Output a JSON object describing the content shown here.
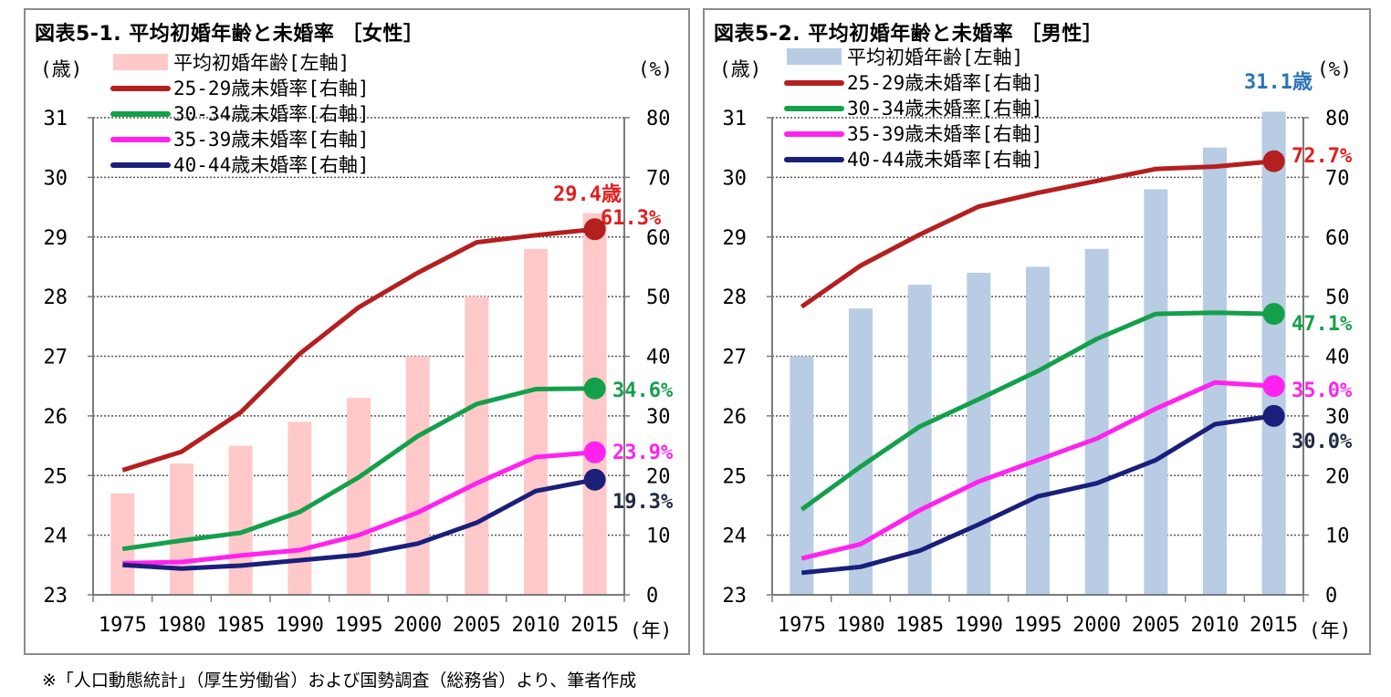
{
  "chart_data": [
    {
      "type": "bar+line",
      "title": "図表5-1. 平均初婚年齢と未婚率 ［女性］",
      "left_axis_unit": "(歳)",
      "right_axis_unit": "(%)",
      "x_unit": "(年)",
      "categories": [
        "1975",
        "1980",
        "1985",
        "1990",
        "1995",
        "2000",
        "2005",
        "2010",
        "2015"
      ],
      "left_ylim": [
        23,
        31
      ],
      "left_ticks": [
        "23",
        "24",
        "25",
        "26",
        "27",
        "28",
        "29",
        "30",
        "31"
      ],
      "right_ylim": [
        0,
        80
      ],
      "right_ticks": [
        "0",
        "10",
        "20",
        "30",
        "40",
        "50",
        "60",
        "70",
        "80"
      ],
      "bar_series": {
        "name": "平均初婚年齢[左軸]",
        "color": "#ffc9c9",
        "values": [
          24.7,
          25.2,
          25.5,
          25.9,
          26.3,
          27.0,
          28.0,
          28.8,
          29.4
        ]
      },
      "line_series": [
        {
          "name": "25-29歳未婚率[右軸]",
          "color": "#b41f1f",
          "values": [
            20.9,
            24.0,
            30.6,
            40.4,
            48.2,
            54.0,
            59.1,
            60.3,
            61.3
          ]
        },
        {
          "name": "30-34歳未婚率[右軸]",
          "color": "#14a04a",
          "values": [
            7.7,
            9.1,
            10.4,
            13.9,
            19.7,
            26.6,
            32.0,
            34.5,
            34.6
          ]
        },
        {
          "name": "35-39歳未婚率[右軸]",
          "color": "#ff22ee",
          "values": [
            5.3,
            5.5,
            6.6,
            7.5,
            10.0,
            13.8,
            18.7,
            23.1,
            23.9
          ]
        },
        {
          "name": "40-44歳未婚率[右軸]",
          "color": "#1a1f7a",
          "values": [
            5.0,
            4.4,
            4.9,
            5.8,
            6.7,
            8.6,
            12.1,
            17.4,
            19.3
          ]
        }
      ],
      "annotations": [
        {
          "text": "29.4歳",
          "color": "#e0201e"
        },
        {
          "text": "61.3%",
          "color": "#e0201e"
        },
        {
          "text": "34.6%",
          "color": "#14a04a"
        },
        {
          "text": "23.9%",
          "color": "#ff22ee"
        },
        {
          "text": "19.3%",
          "color": "#1f2a44"
        }
      ]
    },
    {
      "type": "bar+line",
      "title": "図表5-2. 平均初婚年齢と未婚率 ［男性］",
      "left_axis_unit": "(歳)",
      "right_axis_unit": "(%)",
      "x_unit": "(年)",
      "categories": [
        "1975",
        "1980",
        "1985",
        "1990",
        "1995",
        "2000",
        "2005",
        "2010",
        "2015"
      ],
      "left_ylim": [
        23,
        31
      ],
      "left_ticks": [
        "23",
        "24",
        "25",
        "26",
        "27",
        "28",
        "29",
        "30",
        "31"
      ],
      "right_ylim": [
        0,
        80
      ],
      "right_ticks": [
        "0",
        "10",
        "20",
        "30",
        "40",
        "50",
        "60",
        "70",
        "80"
      ],
      "bar_series": {
        "name": "平均初婚年齢[左軸]",
        "color": "#b8cce4",
        "values": [
          27.0,
          27.8,
          28.2,
          28.4,
          28.5,
          28.8,
          29.8,
          30.5,
          31.1
        ]
      },
      "line_series": [
        {
          "name": "25-29歳未婚率[右軸]",
          "color": "#b41f1f",
          "values": [
            48.3,
            55.2,
            60.4,
            65.1,
            67.4,
            69.4,
            71.4,
            71.8,
            72.7
          ]
        },
        {
          "name": "30-34歳未婚率[右軸]",
          "color": "#14a04a",
          "values": [
            14.3,
            21.5,
            28.2,
            32.8,
            37.5,
            42.9,
            47.1,
            47.3,
            47.1
          ]
        },
        {
          "name": "35-39歳未婚率[右軸]",
          "color": "#ff22ee",
          "values": [
            6.1,
            8.5,
            14.2,
            19.0,
            22.6,
            26.2,
            31.2,
            35.6,
            35.0
          ]
        },
        {
          "name": "40-44歳未婚率[右軸]",
          "color": "#1a1f7a",
          "values": [
            3.7,
            4.7,
            7.4,
            11.8,
            16.5,
            18.7,
            22.6,
            28.6,
            30.0
          ]
        }
      ],
      "annotations": [
        {
          "text": "31.1歳",
          "color": "#2e75b6"
        },
        {
          "text": "72.7%",
          "color": "#e0201e"
        },
        {
          "text": "47.1%",
          "color": "#14a04a"
        },
        {
          "text": "35.0%",
          "color": "#ff22ee"
        },
        {
          "text": "30.0%",
          "color": "#1f2a44"
        }
      ]
    }
  ],
  "footnote": "※「人口動態統計」（厚生労働省）および国勢調査（総務省）より、筆者作成"
}
